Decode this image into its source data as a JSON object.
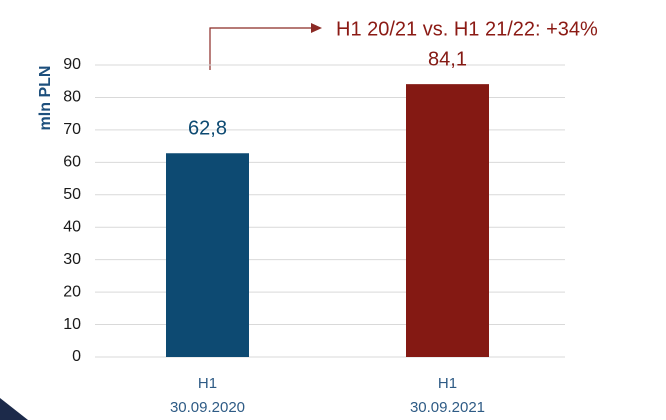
{
  "chart_data": {
    "type": "bar",
    "annotation": "H1 20/21 vs. H1 21/22: +34%",
    "ylabel": "mln PLN",
    "categories": [
      "H1\n30.09.2020",
      "H1\n30.09.2021"
    ],
    "values": [
      62.8,
      84.1
    ],
    "value_labels": [
      "62,8",
      "84,1"
    ],
    "colors": [
      "#0d4a72",
      "#841913"
    ],
    "ylim": [
      0,
      90
    ],
    "yticks": [
      0,
      10,
      20,
      30,
      40,
      50,
      60,
      70,
      80,
      90
    ],
    "grid": true
  }
}
